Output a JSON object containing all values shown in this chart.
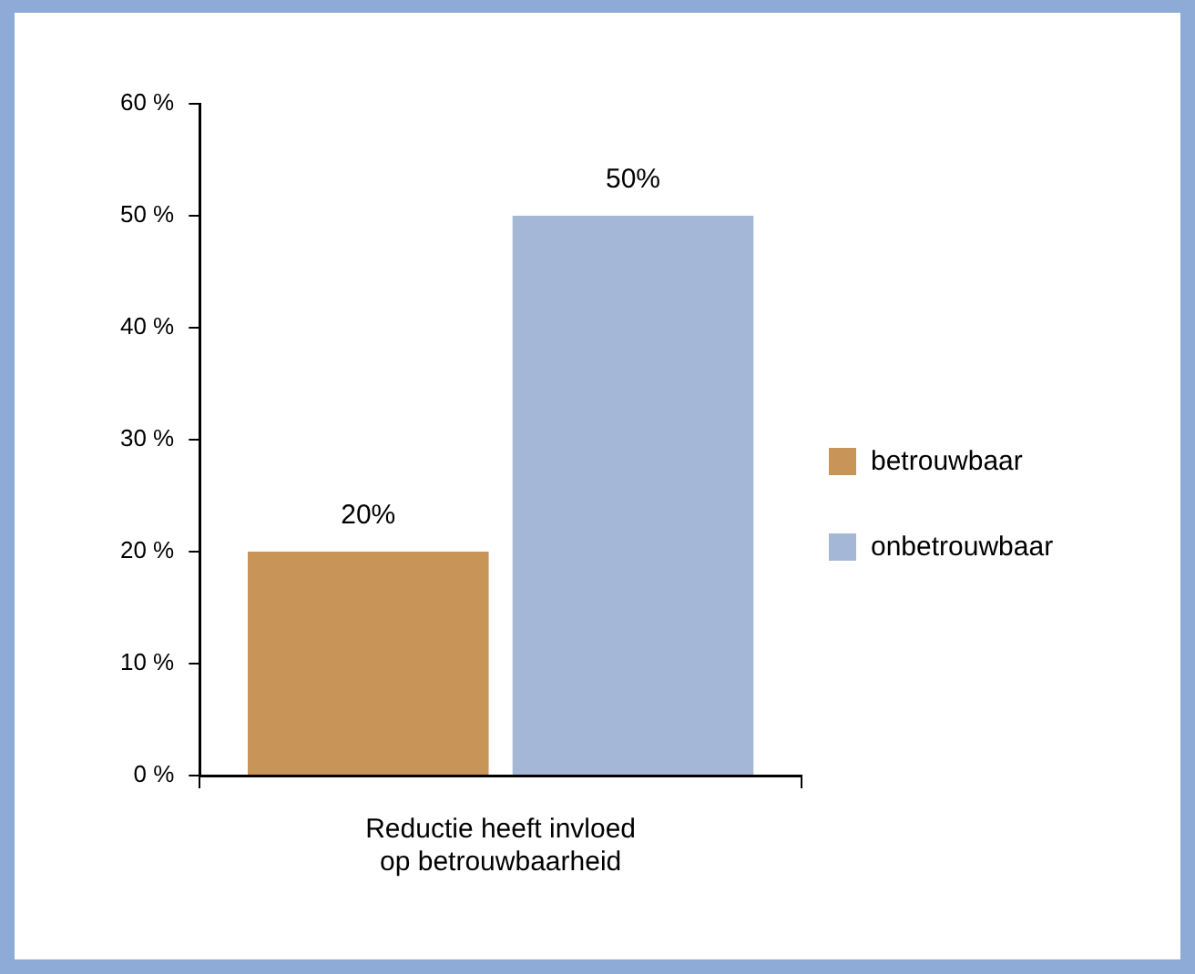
{
  "chart_data": {
    "type": "bar",
    "categories": [
      "Reductie heeft invloed op betrouwbaarheid"
    ],
    "series": [
      {
        "name": "betrouwbaar",
        "color": "#c89458",
        "values": [
          20
        ],
        "value_labels": [
          "20%"
        ]
      },
      {
        "name": "onbetrouwbaar",
        "color": "#a5b7d7",
        "values": [
          50
        ],
        "value_labels": [
          "50%"
        ]
      }
    ],
    "ylim": [
      0,
      60
    ],
    "yticks": [
      {
        "value": 0,
        "label": "0 %"
      },
      {
        "value": 10,
        "label": "10 %"
      },
      {
        "value": 20,
        "label": "20 %"
      },
      {
        "value": 30,
        "label": "30 %"
      },
      {
        "value": 40,
        "label": "40 %"
      },
      {
        "value": 50,
        "label": "50 %"
      },
      {
        "value": 60,
        "label": "60 %"
      }
    ],
    "grid": false,
    "legend": "right"
  }
}
